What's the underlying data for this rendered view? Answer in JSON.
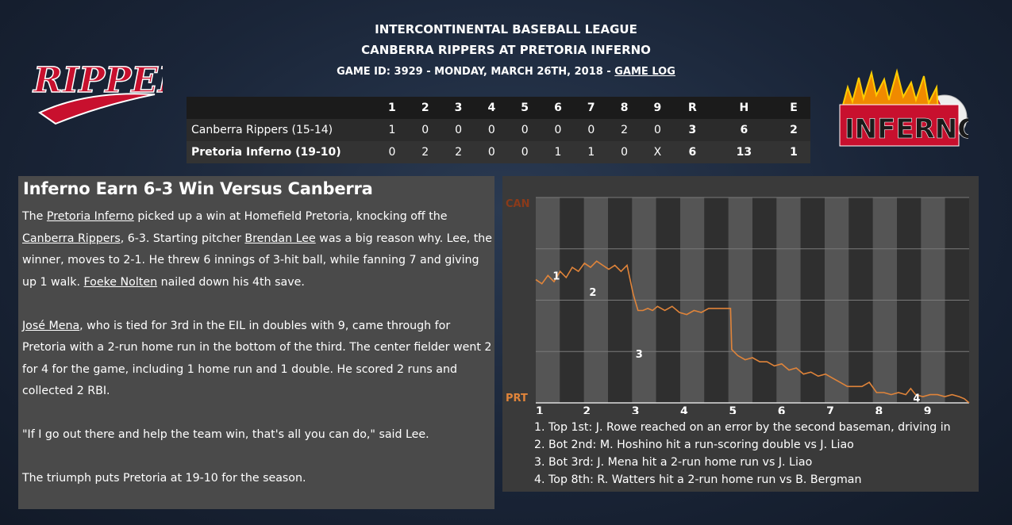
{
  "header": {
    "league": "INTERCONTINENTAL BASEBALL LEAGUE",
    "matchup": "CANBERRA RIPPERS AT PRETORIA INFERNO",
    "game_info": "GAME ID: 3929 - MONDAY, MARCH 26TH, 2018 - ",
    "game_log_link": "GAME LOG"
  },
  "logos": {
    "away": "RIPPERS",
    "home": "INFERNO"
  },
  "linescore": {
    "columns": [
      "1",
      "2",
      "3",
      "4",
      "5",
      "6",
      "7",
      "8",
      "9",
      "R",
      "H",
      "E"
    ],
    "rows": [
      {
        "team": "Canberra Rippers (15-14)",
        "cells": [
          "1",
          "0",
          "0",
          "0",
          "0",
          "0",
          "0",
          "2",
          "0",
          "3",
          "6",
          "2"
        ]
      },
      {
        "team": "Pretoria Inferno (19-10)",
        "cells": [
          "0",
          "2",
          "2",
          "0",
          "0",
          "1",
          "1",
          "0",
          "X",
          "6",
          "13",
          "1"
        ]
      }
    ]
  },
  "story": {
    "headline": "Inferno Earn 6-3 Win Versus Canberra",
    "p1": {
      "t1": "The ",
      "l1": "Pretoria Inferno",
      "t2": " picked up a win at Homefield Pretoria, knocking off the ",
      "l2": "Canberra Rippers",
      "t3": ", 6-3. Starting pitcher ",
      "l3": "Brendan Lee",
      "t4": " was a big reason why. Lee, the winner, moves to 2-1. He threw 6 innings of 3-hit ball, while fanning 7 and giving up 1 walk. ",
      "l4": "Foeke Nolten",
      "t5": " nailed down his 4th save."
    },
    "p2": {
      "l1": "José Mena",
      "t1": ", who is tied for 3rd in the EIL in doubles with 9, came through for Pretoria with a 2-run home run in the bottom of the third. The center fielder went 2 for 4 for the game, including 1 home run and 1 double. He scored 2 runs and collected 2 RBI."
    },
    "p3": "\"If I go out there and help the team win, that's all you can do,\" said Lee.",
    "p4": "The triumph puts Pretoria at 19-10 for the season."
  },
  "win_probability": {
    "top_label": "CAN",
    "bottom_label": "PRT",
    "innings": [
      "1",
      "2",
      "3",
      "4",
      "5",
      "6",
      "7",
      "8",
      "9"
    ],
    "markers": [
      {
        "label": "1",
        "x": 0.6,
        "y": 0.38
      },
      {
        "label": "2",
        "x": 2.1,
        "y": 0.46
      },
      {
        "label": "3",
        "x": 4.0,
        "y": 0.76
      },
      {
        "label": "4",
        "x": 15.4,
        "y": 0.975
      }
    ],
    "series_color": "#e0843a",
    "series": [
      [
        0,
        0.4
      ],
      [
        0.25,
        0.42
      ],
      [
        0.5,
        0.38
      ],
      [
        0.75,
        0.41
      ],
      [
        1.0,
        0.36
      ],
      [
        1.25,
        0.39
      ],
      [
        1.5,
        0.34
      ],
      [
        1.75,
        0.36
      ],
      [
        2.0,
        0.32
      ],
      [
        2.25,
        0.34
      ],
      [
        2.5,
        0.31
      ],
      [
        2.75,
        0.33
      ],
      [
        3.0,
        0.35
      ],
      [
        3.25,
        0.33
      ],
      [
        3.5,
        0.36
      ],
      [
        3.75,
        0.33
      ],
      [
        4.0,
        0.47
      ],
      [
        4.2,
        0.55
      ],
      [
        4.4,
        0.55
      ],
      [
        4.6,
        0.54
      ],
      [
        4.8,
        0.55
      ],
      [
        5.0,
        0.53
      ],
      [
        5.3,
        0.55
      ],
      [
        5.6,
        0.53
      ],
      [
        5.9,
        0.56
      ],
      [
        6.2,
        0.57
      ],
      [
        6.5,
        0.55
      ],
      [
        6.8,
        0.56
      ],
      [
        7.1,
        0.54
      ],
      [
        7.4,
        0.54
      ],
      [
        7.7,
        0.54
      ],
      [
        8.0,
        0.54
      ],
      [
        8.05,
        0.74
      ],
      [
        8.3,
        0.77
      ],
      [
        8.6,
        0.79
      ],
      [
        8.9,
        0.78
      ],
      [
        9.2,
        0.8
      ],
      [
        9.5,
        0.8
      ],
      [
        9.8,
        0.82
      ],
      [
        10.1,
        0.81
      ],
      [
        10.4,
        0.84
      ],
      [
        10.7,
        0.83
      ],
      [
        11.0,
        0.86
      ],
      [
        11.3,
        0.85
      ],
      [
        11.6,
        0.87
      ],
      [
        11.9,
        0.86
      ],
      [
        12.2,
        0.88
      ],
      [
        12.5,
        0.9
      ],
      [
        12.8,
        0.92
      ],
      [
        13.1,
        0.92
      ],
      [
        13.4,
        0.92
      ],
      [
        13.7,
        0.9
      ],
      [
        14.0,
        0.95
      ],
      [
        14.3,
        0.95
      ],
      [
        14.6,
        0.96
      ],
      [
        14.9,
        0.95
      ],
      [
        15.2,
        0.96
      ],
      [
        15.4,
        0.93
      ],
      [
        15.6,
        0.96
      ],
      [
        15.9,
        0.97
      ],
      [
        16.2,
        0.96
      ],
      [
        16.5,
        0.96
      ],
      [
        16.8,
        0.97
      ],
      [
        17.1,
        0.96
      ],
      [
        17.4,
        0.97
      ],
      [
        17.6,
        0.98
      ],
      [
        17.8,
        1.0
      ]
    ],
    "notes": [
      "1. Top 1st: J. Rowe reached on an error by the second baseman, driving in",
      "2. Bot 2nd: M. Hoshino hit a run-scoring double vs J. Liao",
      "3. Bot 3rd: J. Mena hit a 2-run home run vs J. Liao",
      "4. Top 8th: R. Watters hit a 2-run home run vs B. Bergman"
    ]
  }
}
